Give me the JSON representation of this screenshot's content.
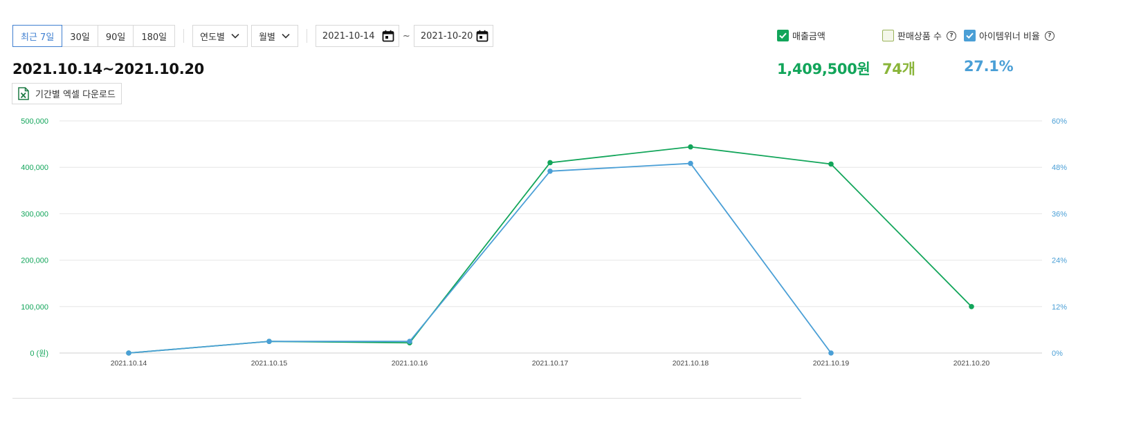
{
  "controls": {
    "periods": [
      {
        "label": "최근 7일",
        "active": true
      },
      {
        "label": "30일",
        "active": false
      },
      {
        "label": "90일",
        "active": false
      },
      {
        "label": "180일",
        "active": false
      }
    ],
    "yearly_label": "연도별",
    "monthly_label": "월별",
    "start_date": "2021-10-14",
    "date_separator": "~",
    "end_date": "2021-10-20"
  },
  "range_title": "2021.10.14~2021.10.20",
  "excel_label": "기간별 엑셀 다운로드",
  "metrics": {
    "sales": {
      "label": "매출금액",
      "value": "1,409,500원",
      "checked": true,
      "color": "#12a55a"
    },
    "items": {
      "label": "판매상품 수",
      "value": "74개",
      "checked": false,
      "color": "#8ab53a"
    },
    "winner": {
      "label": "아이템위너 비율",
      "value": "27.1%",
      "checked": true,
      "color": "#4a9fd6"
    }
  },
  "chart_data": {
    "type": "line",
    "x": [
      "2021.10.14",
      "2021.10.15",
      "2021.10.16",
      "2021.10.17",
      "2021.10.18",
      "2021.10.19",
      "2021.10.20"
    ],
    "y_left": {
      "ticks": [
        "0 (원)",
        "100,000",
        "200,000",
        "300,000",
        "400,000",
        "500,000"
      ],
      "ylim": [
        0,
        500000
      ],
      "color": "#12a55a"
    },
    "y_right": {
      "ticks": [
        "0%",
        "12%",
        "24%",
        "36%",
        "48%",
        "60%"
      ],
      "ylim": [
        0,
        60
      ],
      "color": "#4a9fd6"
    },
    "grid": true,
    "series": [
      {
        "name": "매출금액",
        "axis": "left",
        "color": "#12a55a",
        "values": [
          0,
          25000,
          22000,
          410000,
          444000,
          407000,
          100000
        ]
      },
      {
        "name": "아이템위너 비율",
        "axis": "right",
        "color": "#4a9fd6",
        "values": [
          0,
          3,
          3,
          47,
          49,
          0,
          null
        ]
      }
    ]
  }
}
